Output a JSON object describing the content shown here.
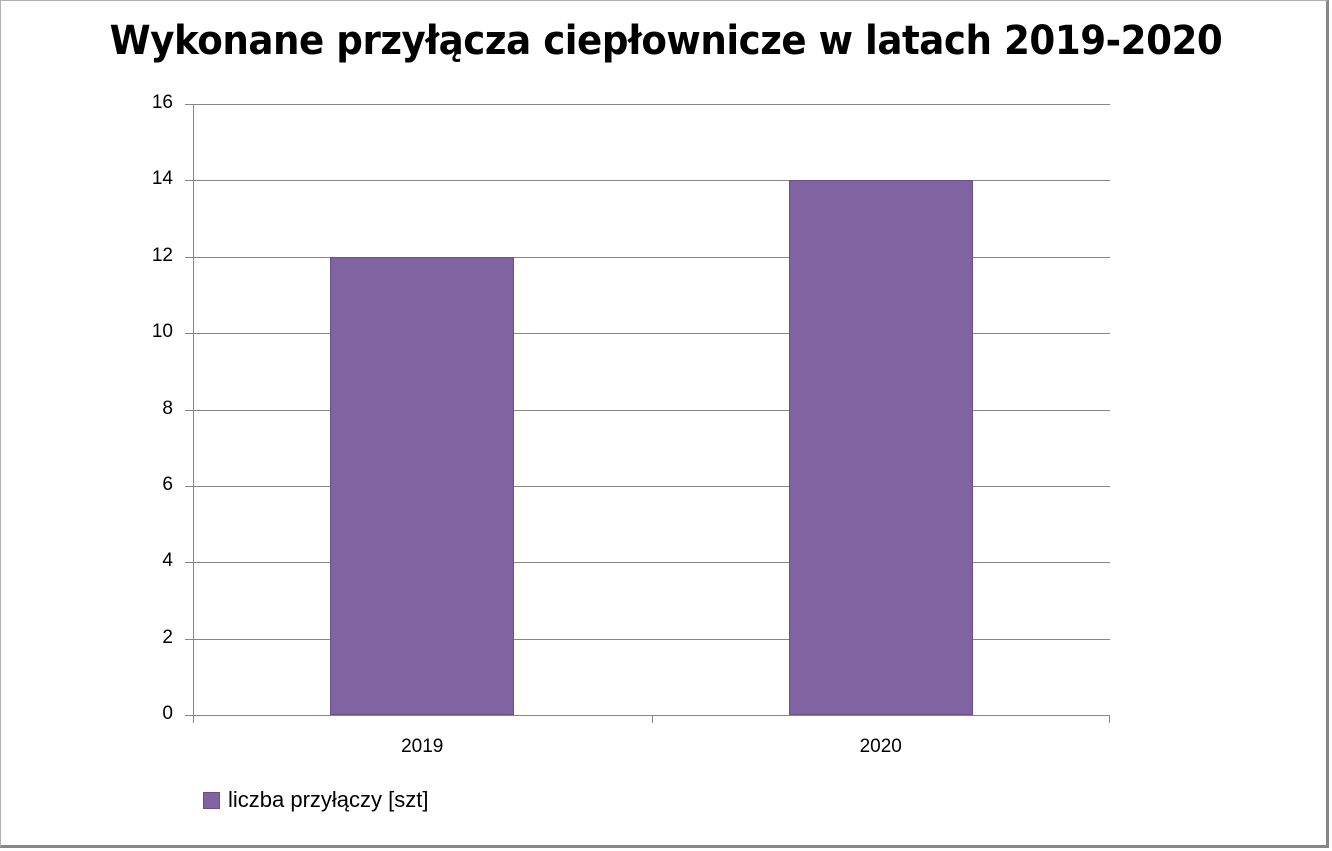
{
  "chart_data": {
    "type": "bar",
    "title": "Wykonane przyłącza ciepłownicze w latach 2019-2020",
    "categories": [
      "2019",
      "2020"
    ],
    "series": [
      {
        "name": "liczba przyłączy [szt]",
        "values": [
          12,
          14
        ],
        "color": "#8064a2"
      }
    ],
    "xlabel": "",
    "ylabel": "",
    "ylim": [
      0,
      16
    ],
    "yticks": [
      "0",
      "2",
      "4",
      "6",
      "8",
      "10",
      "12",
      "14",
      "16"
    ],
    "grid": true,
    "legend_position": "bottom-left"
  },
  "colors": {
    "bar": "#8064a2",
    "grid": "#868686",
    "border": "#878787"
  }
}
